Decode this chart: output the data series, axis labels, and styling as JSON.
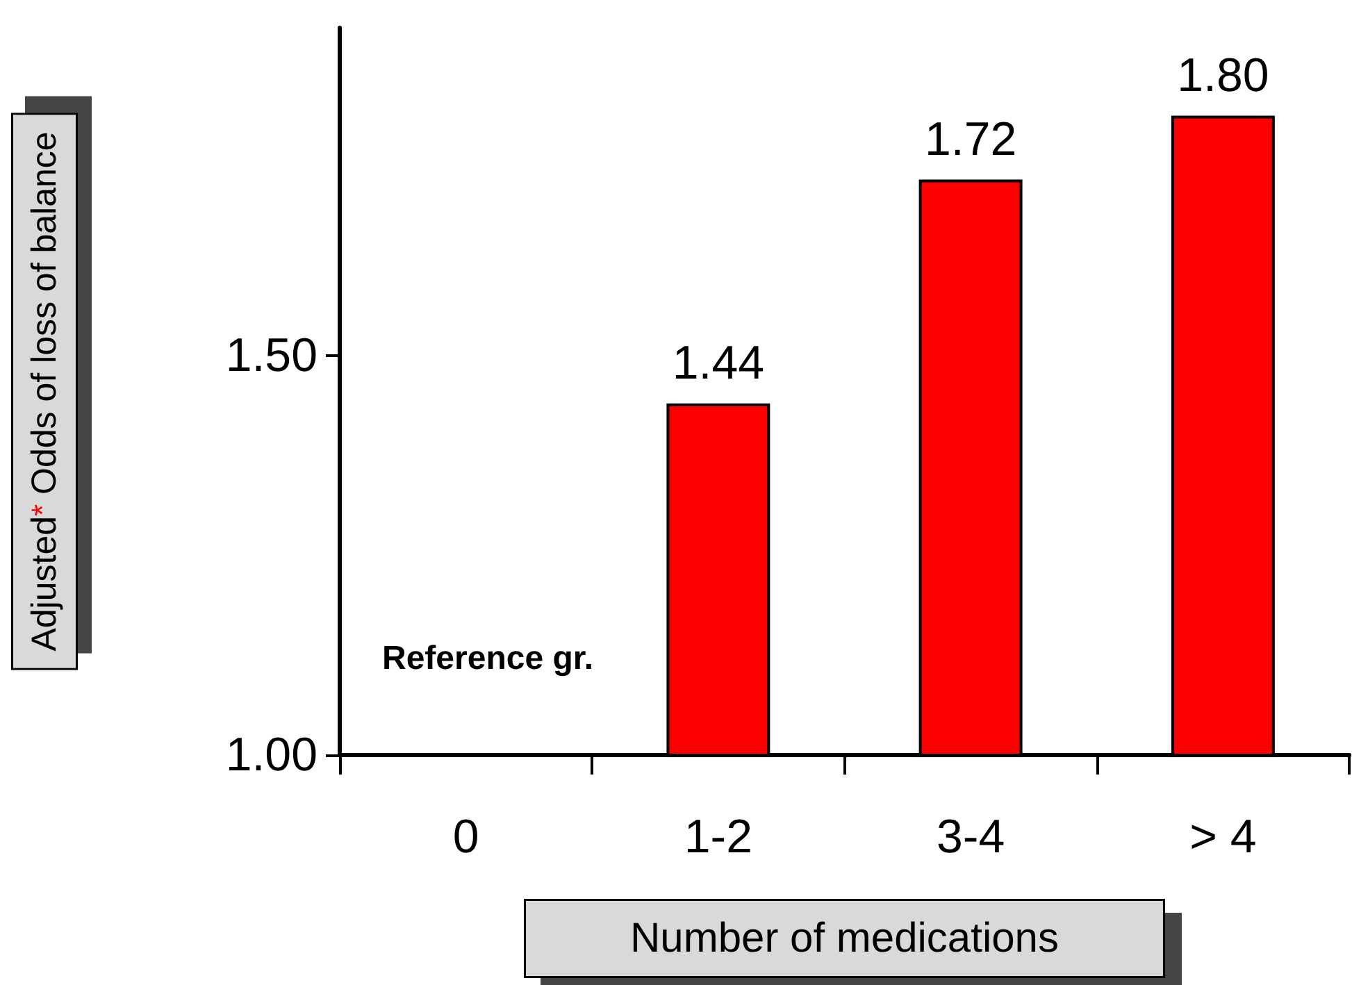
{
  "chart_data": {
    "type": "bar",
    "xlabel": "Number of medications",
    "ylabel": "Adjusted$^{*}$ Odds of loss of balance",
    "categories": [
      "0",
      "1-2",
      "3-4",
      "> 4"
    ],
    "values": [
      null,
      1.44,
      1.72,
      1.8
    ],
    "value_labels": [
      null,
      "1.44",
      "1.72",
      "1.80"
    ],
    "color": "#ff0000",
    "ylim": [
      1.0,
      1.91
    ],
    "yticks": [
      {
        "value": 1.0,
        "label": "1.00"
      },
      {
        "value": 1.5,
        "label": "1.50"
      }
    ],
    "annotations": [
      "Reference gr."
    ],
    "grid": false
  }
}
